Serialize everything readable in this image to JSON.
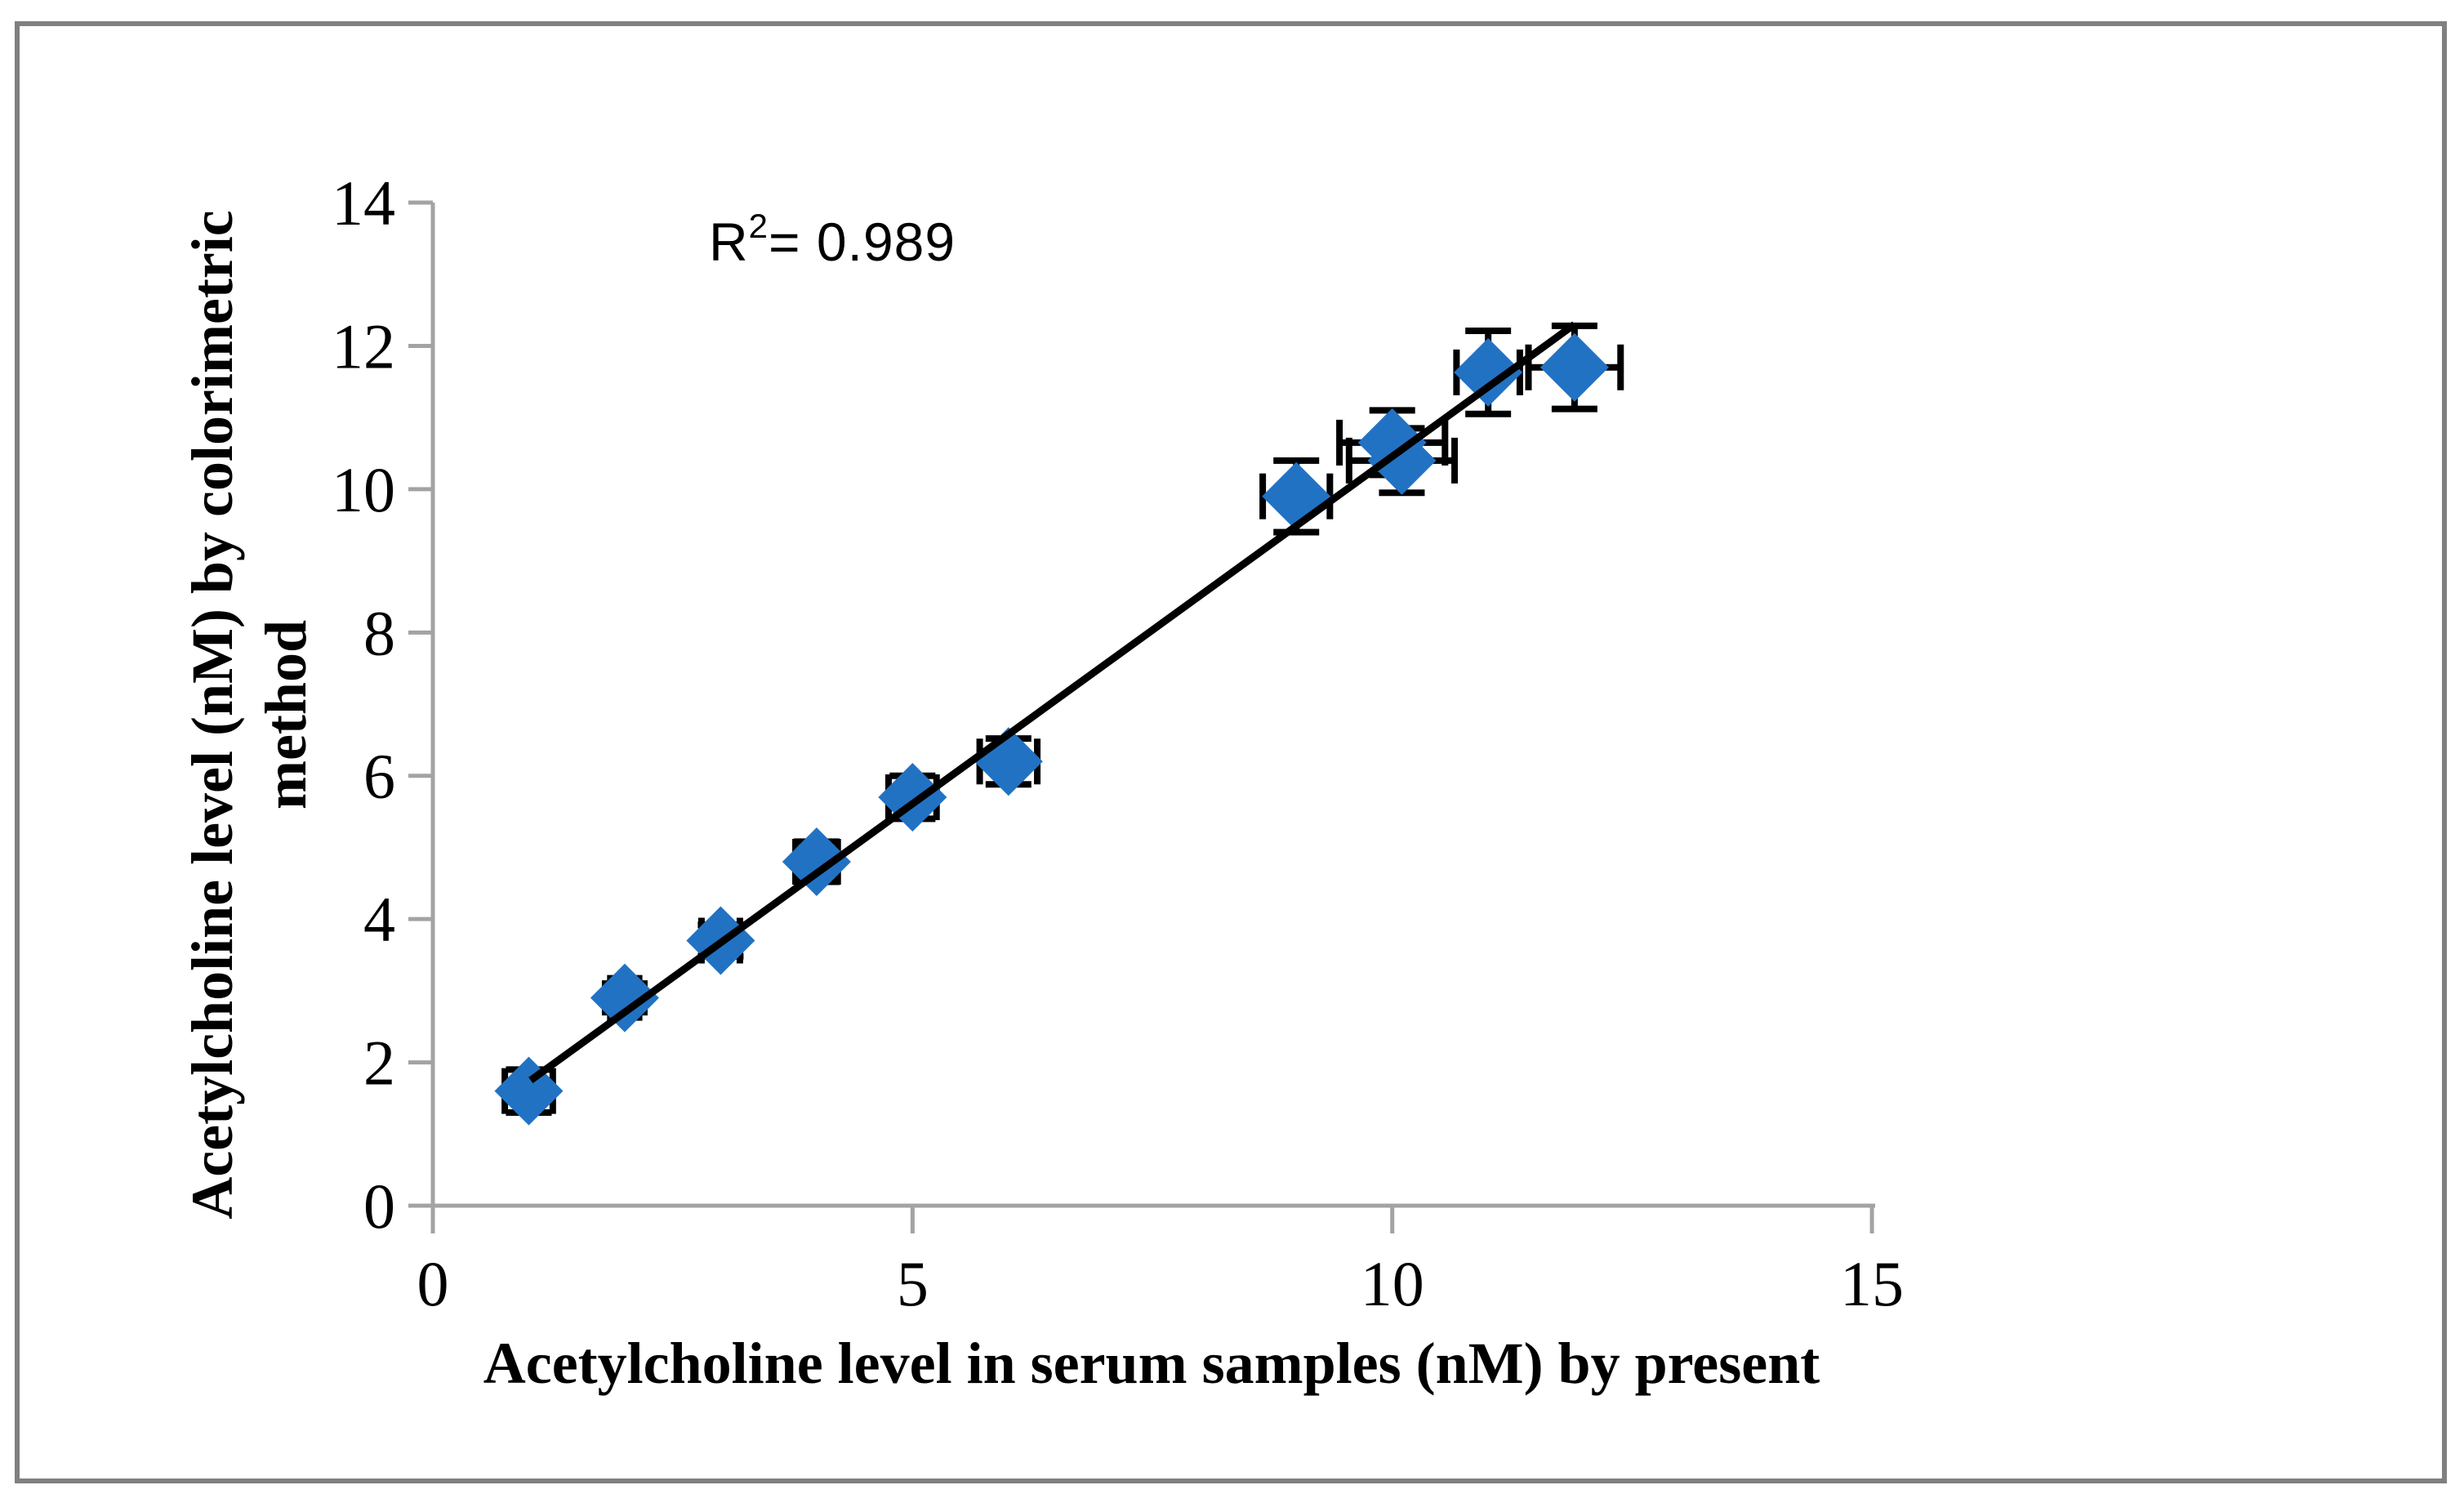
{
  "chart_data": {
    "type": "scatter",
    "annotation": {
      "base": "R",
      "exponent": "2",
      "rest": "= 0.989",
      "full_text": "R2= 0.989",
      "r_squared": 0.989
    },
    "xlabel": "Acetylcholine level in serum samples (nM) by present",
    "ylabel_line1": "Acetylcholine level (nM) by colorimetric",
    "ylabel_line2": "method",
    "xlim": [
      0,
      15
    ],
    "ylim": [
      0,
      14
    ],
    "x_ticks": [
      0,
      5,
      10,
      15
    ],
    "y_ticks": [
      0,
      2,
      4,
      6,
      8,
      10,
      12,
      14
    ],
    "grid": false,
    "legend": "none",
    "points": [
      {
        "x": 1.0,
        "y": 1.6,
        "xerr": 0.25,
        "yerr": 0.3
      },
      {
        "x": 2.0,
        "y": 2.9,
        "xerr": 0.15,
        "yerr": 0.2
      },
      {
        "x": 3.0,
        "y": 3.7,
        "xerr": 0.2,
        "yerr": 0.22
      },
      {
        "x": 4.0,
        "y": 4.8,
        "xerr": 0.22,
        "yerr": 0.28
      },
      {
        "x": 5.0,
        "y": 5.7,
        "xerr": 0.25,
        "yerr": 0.3
      },
      {
        "x": 6.0,
        "y": 6.2,
        "xerr": 0.3,
        "yerr": 0.32
      },
      {
        "x": 9.0,
        "y": 9.9,
        "xerr": 0.35,
        "yerr": 0.5
      },
      {
        "x": 10.0,
        "y": 10.65,
        "xerr": 0.55,
        "yerr": 0.45
      },
      {
        "x": 10.1,
        "y": 10.4,
        "xerr": 0.55,
        "yerr": 0.45
      },
      {
        "x": 11.0,
        "y": 11.63,
        "xerr": 0.33,
        "yerr": 0.58
      },
      {
        "x": 11.9,
        "y": 11.7,
        "xerr": 0.48,
        "yerr": 0.58
      }
    ],
    "trendline": {
      "x1": 1.02,
      "y1": 1.75,
      "x2": 11.9,
      "y2": 12.3
    },
    "marker_shape": "diamond",
    "colors": {
      "marker": "#2272C3",
      "error_bar": "#000000",
      "trendline": "#000000",
      "axis": "#A3A3A3",
      "text": "#000000",
      "border": "#808080"
    }
  }
}
